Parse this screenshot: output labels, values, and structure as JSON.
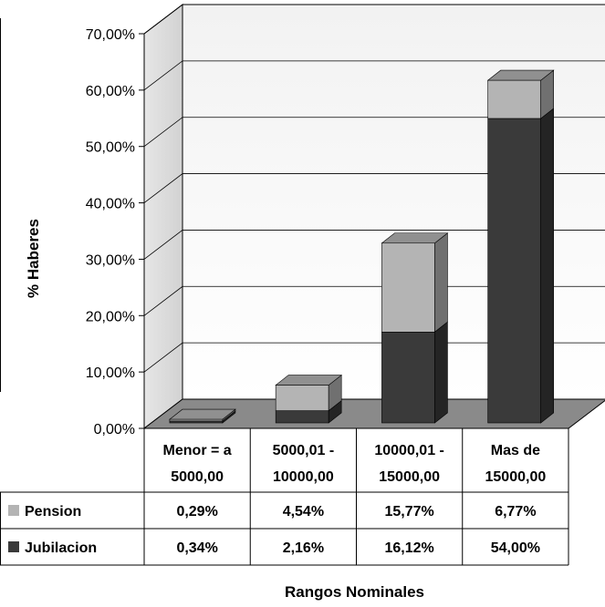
{
  "chart_data": {
    "type": "bar",
    "stacked": true,
    "three_d": true,
    "xlabel": "Rangos Nominales",
    "ylabel": "% Haberes",
    "ylim": [
      0,
      70
    ],
    "yticks": [
      "0,00%",
      "10,00%",
      "20,00%",
      "30,00%",
      "40,00%",
      "50,00%",
      "60,00%",
      "70,00%"
    ],
    "grid": true,
    "data_table": true,
    "categories": [
      [
        "Menor = a",
        "5000,00"
      ],
      [
        "5000,01 -",
        "10000,00"
      ],
      [
        "10000,01 -",
        "15000,00"
      ],
      [
        "Mas de",
        "15000,00"
      ]
    ],
    "series": [
      {
        "name": "Jubilacion",
        "values": [
          0.34,
          2.16,
          16.12,
          54.0
        ],
        "labels": [
          "0,34%",
          "2,16%",
          "16,12%",
          "54,00%"
        ],
        "color": "#3a3a3a"
      },
      {
        "name": "Pension",
        "values": [
          0.29,
          4.54,
          15.77,
          6.77
        ],
        "labels": [
          "0,29%",
          "4,54%",
          "15,77%",
          "6,77%"
        ],
        "color": "#b4b4b4"
      }
    ]
  }
}
